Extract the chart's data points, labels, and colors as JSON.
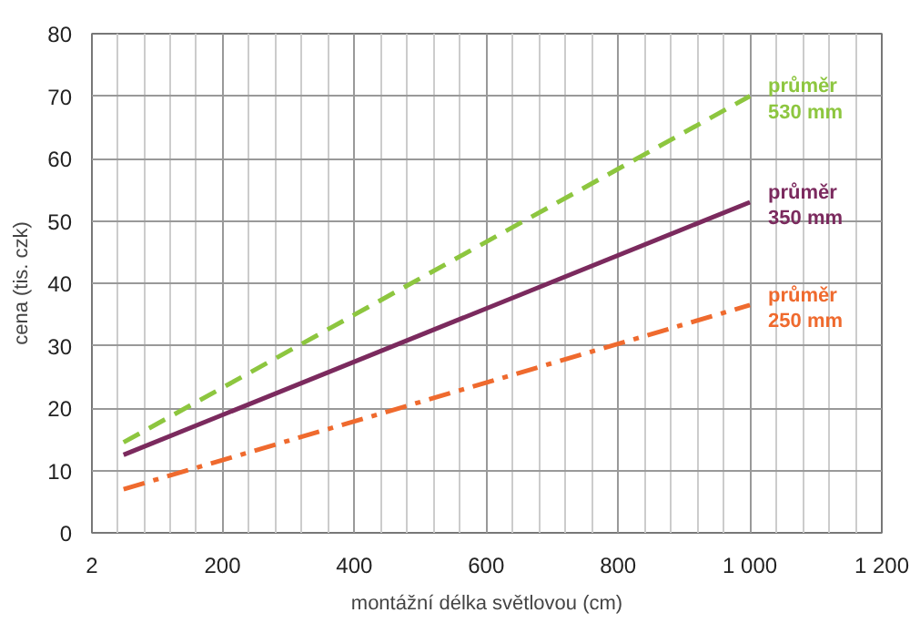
{
  "chart_data": {
    "type": "line",
    "xlabel": "montážní délka světlovou (cm)",
    "ylabel": "cena (tis. czk)",
    "x": [
      50,
      1000
    ],
    "series": [
      {
        "name": "průměr\n530 mm",
        "color": "#8dc63f",
        "values": [
          14.5,
          70
        ],
        "line_style": "dashed"
      },
      {
        "name": "průměr\n350 mm",
        "color": "#7b2a5e",
        "values": [
          12.5,
          53
        ],
        "line_style": "solid"
      },
      {
        "name": "průměr\n250 mm",
        "color": "#ef6a2e",
        "values": [
          7,
          36.5
        ],
        "line_style": "dashdot"
      }
    ],
    "xlim": [
      2,
      1200
    ],
    "ylim": [
      0,
      80
    ],
    "xticks": [
      2,
      200,
      400,
      600,
      800,
      {
        "value": 1000,
        "label": "1 000"
      },
      {
        "value": 1200,
        "label": "1 200"
      }
    ],
    "yticks": [
      0,
      10,
      20,
      30,
      40,
      50,
      60,
      70,
      80
    ],
    "grid": true
  }
}
